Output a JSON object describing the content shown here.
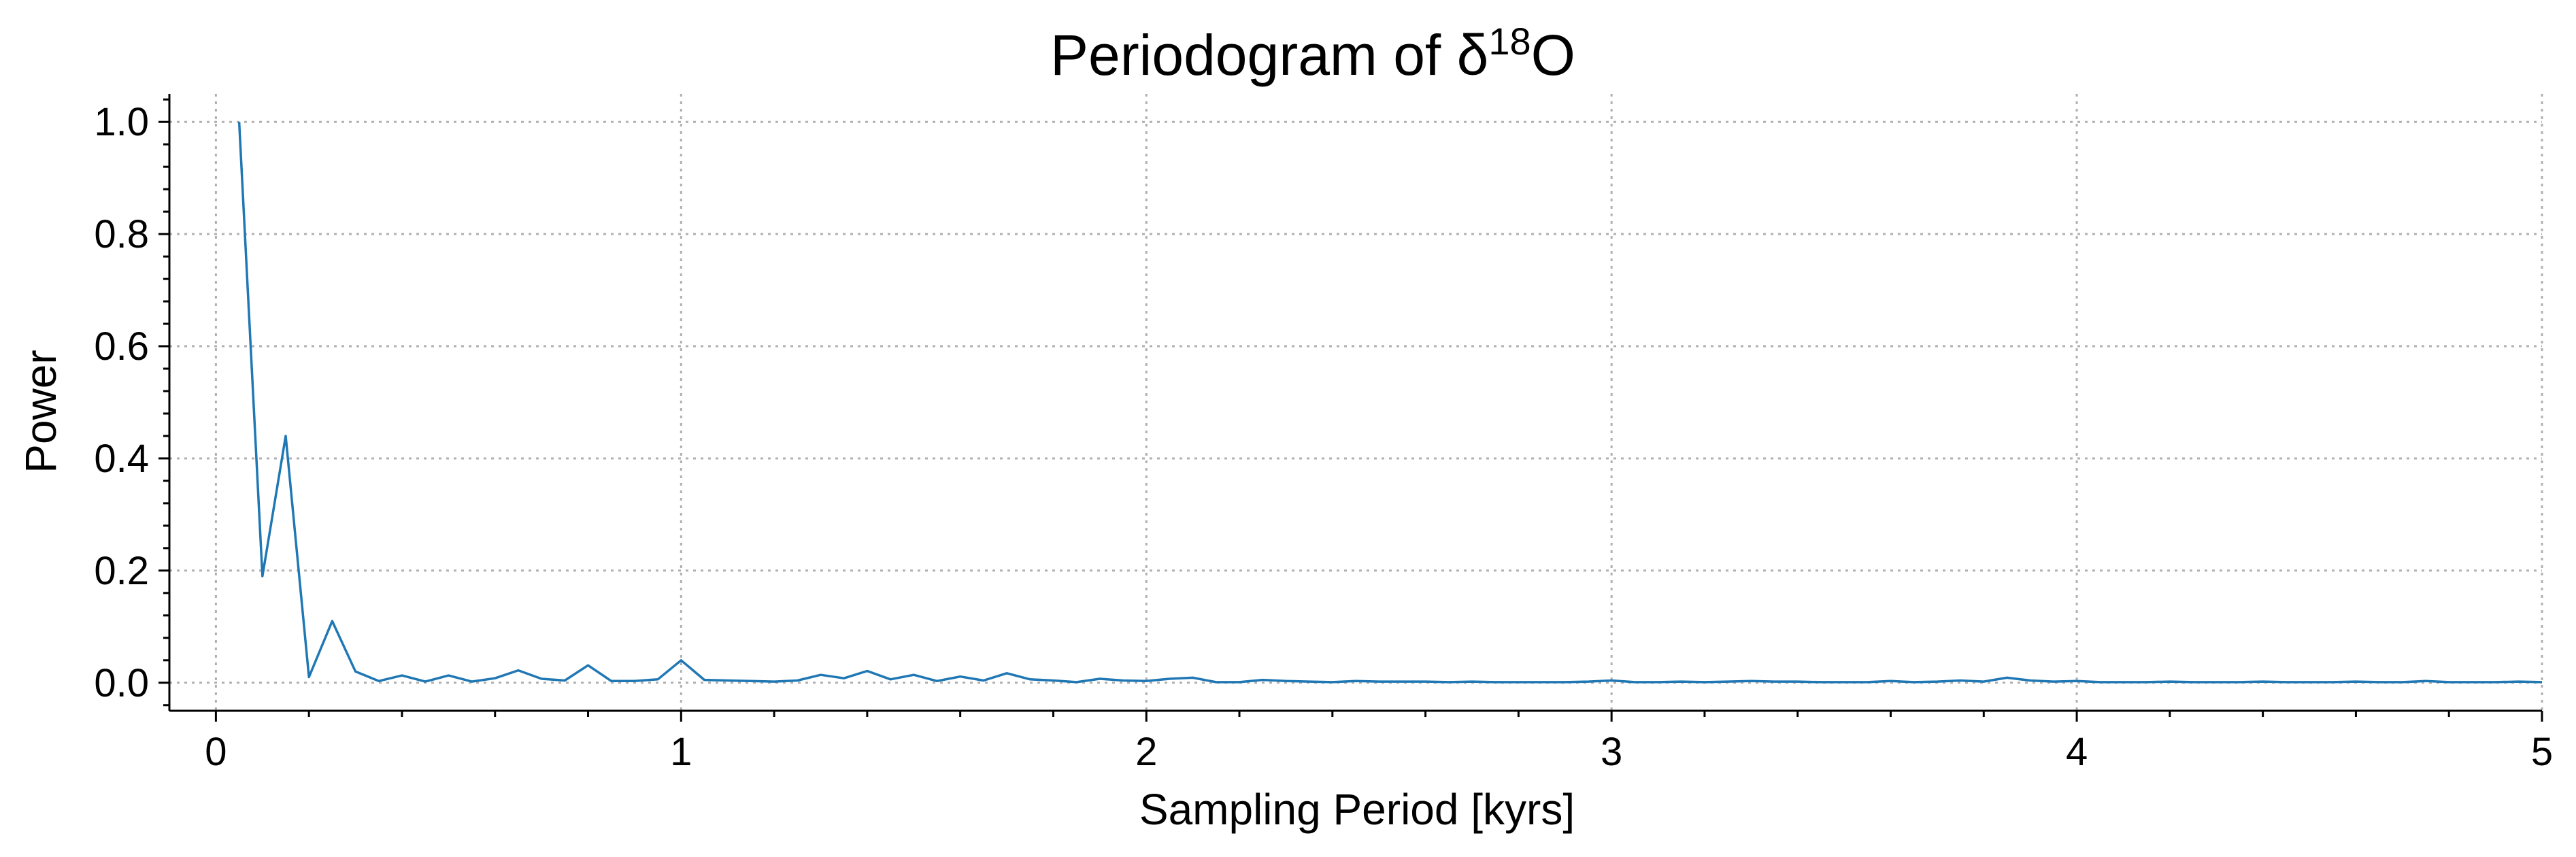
{
  "chart_data": {
    "type": "line",
    "title_parts": {
      "prefix": "Periodogram of δ",
      "superscript": "18",
      "suffix": "O"
    },
    "xlabel": "Sampling Period [kyrs]",
    "ylabel": "Power",
    "xlim": [
      -0.1,
      5.0
    ],
    "ylim": [
      -0.05,
      1.05
    ],
    "x_ticks": [
      0,
      1,
      2,
      3,
      4,
      5
    ],
    "x_tick_labels": [
      "0",
      "1",
      "2",
      "3",
      "4",
      "5"
    ],
    "y_ticks": [
      0.0,
      0.2,
      0.4,
      0.6,
      0.8,
      1.0
    ],
    "y_tick_labels": [
      "0.0",
      "0.2",
      "0.4",
      "0.6",
      "0.8",
      "1.0"
    ],
    "x_minor_step": 0.2,
    "y_minor_step": 0.04,
    "grid": true,
    "line_color": "#1f77b4",
    "series": [
      {
        "x": [
          0.05,
          0.1,
          0.15,
          0.2,
          0.25,
          0.3,
          0.35,
          0.4,
          0.45,
          0.5,
          0.55,
          0.6,
          0.65,
          0.7,
          0.75,
          0.8,
          0.85,
          0.9,
          0.95,
          1.0,
          1.05,
          1.1,
          1.15,
          1.2,
          1.25,
          1.3,
          1.35,
          1.4,
          1.45,
          1.5,
          1.55,
          1.6,
          1.65,
          1.7,
          1.75,
          1.8,
          1.85,
          1.9,
          1.95,
          2.0,
          2.05,
          2.1,
          2.15,
          2.2,
          2.25,
          2.3,
          2.35,
          2.4,
          2.45,
          2.5,
          2.55,
          2.6,
          2.65,
          2.7,
          2.75,
          2.8,
          2.85,
          2.9,
          2.95,
          3.0,
          3.05,
          3.1,
          3.15,
          3.2,
          3.25,
          3.3,
          3.35,
          3.4,
          3.45,
          3.5,
          3.55,
          3.6,
          3.65,
          3.7,
          3.75,
          3.8,
          3.85,
          3.9,
          3.95,
          4.0,
          4.05,
          4.1,
          4.15,
          4.2,
          4.25,
          4.3,
          4.35,
          4.4,
          4.45,
          4.5,
          4.55,
          4.6,
          4.65,
          4.7,
          4.75,
          4.8,
          4.85,
          4.9,
          4.95,
          5.0
        ],
        "y": [
          1.0,
          0.19,
          0.44,
          0.01,
          0.11,
          0.02,
          0.003,
          0.013,
          0.002,
          0.013,
          0.002,
          0.008,
          0.022,
          0.007,
          0.004,
          0.031,
          0.003,
          0.003,
          0.006,
          0.04,
          0.005,
          0.004,
          0.003,
          0.002,
          0.004,
          0.014,
          0.008,
          0.021,
          0.006,
          0.014,
          0.003,
          0.011,
          0.004,
          0.017,
          0.006,
          0.004,
          0.001,
          0.007,
          0.004,
          0.003,
          0.007,
          0.009,
          0.001,
          0.001,
          0.005,
          0.003,
          0.002,
          0.001,
          0.003,
          0.002,
          0.002,
          0.002,
          0.001,
          0.002,
          0.001,
          0.001,
          0.001,
          0.001,
          0.002,
          0.004,
          0.001,
          0.001,
          0.002,
          0.001,
          0.002,
          0.003,
          0.002,
          0.002,
          0.001,
          0.001,
          0.001,
          0.003,
          0.001,
          0.002,
          0.004,
          0.002,
          0.009,
          0.004,
          0.002,
          0.003,
          0.001,
          0.001,
          0.001,
          0.002,
          0.001,
          0.001,
          0.001,
          0.002,
          0.001,
          0.001,
          0.001,
          0.002,
          0.001,
          0.001,
          0.003,
          0.001,
          0.001,
          0.001,
          0.002,
          0.001
        ]
      }
    ]
  }
}
